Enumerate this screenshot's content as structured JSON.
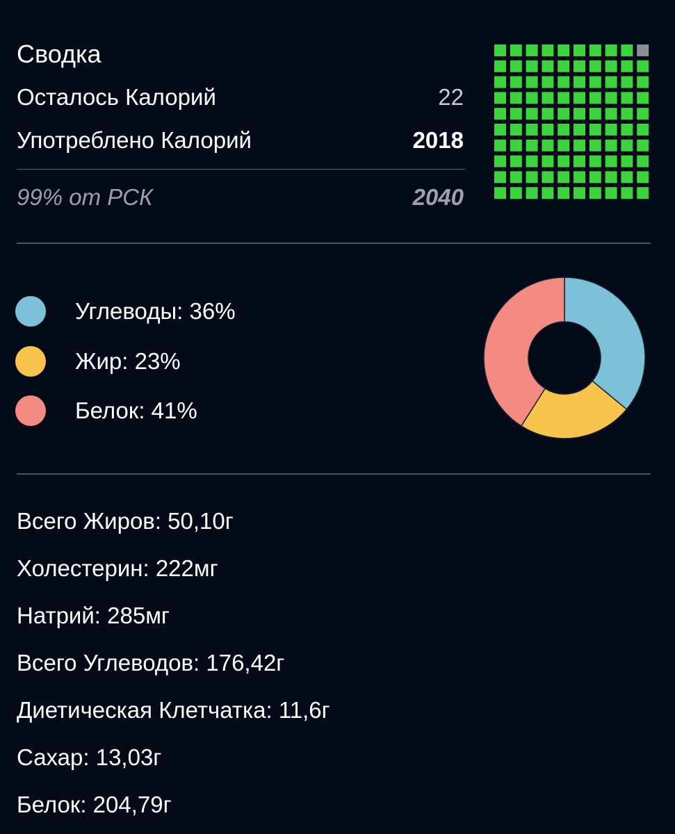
{
  "summary": {
    "title": "Сводка",
    "remaining_label": "Осталось Калорий",
    "remaining_value": "22",
    "consumed_label": "Употреблено Калорий",
    "consumed_value": "2018",
    "rdi_label": "99% от РСК",
    "rdi_value": "2040",
    "grid_filled_fraction": 0.99
  },
  "macros": {
    "items": [
      {
        "label": "Углеводы: 36%",
        "color": "#7cc1d7"
      },
      {
        "label": "Жир: 23%",
        "color": "#f8c44e"
      },
      {
        "label": "Белок: 41%",
        "color": "#f48b82"
      }
    ]
  },
  "nutrients": [
    "Всего Жиров: 50,10г",
    "Холестерин: 222мг",
    "Натрий: 285мг",
    "Всего Углеводов: 176,42г",
    "Диетическая Клетчатка: 11,6г",
    "Сахар: 13,03г",
    "Белок: 204,79г"
  ],
  "chart_data": {
    "type": "pie",
    "categories": [
      "Углеводы",
      "Жир",
      "Белок"
    ],
    "values": [
      36,
      23,
      41
    ],
    "colors": [
      "#7cc1d7",
      "#f8c44e",
      "#f48b82"
    ]
  },
  "colors": {
    "background": "#040b18",
    "grid_filled": "#3cd43c",
    "grid_empty": "#8a8f96"
  }
}
